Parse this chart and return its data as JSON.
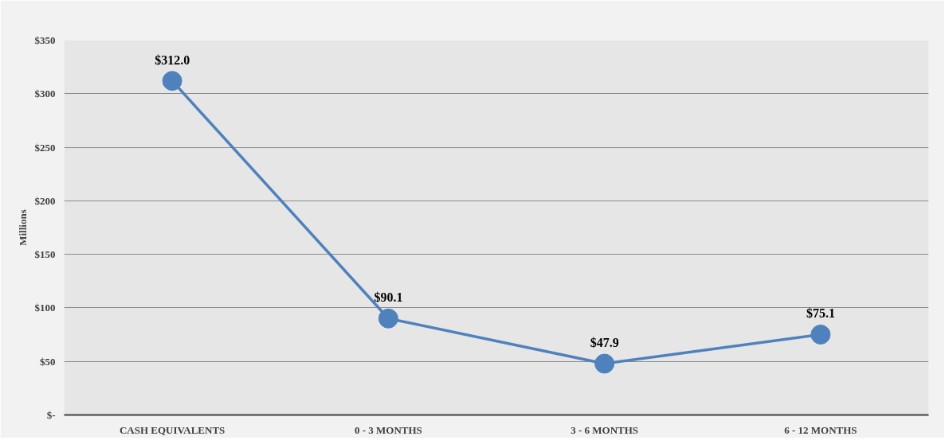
{
  "chart_data": {
    "type": "line",
    "ylabel": "Millions",
    "categories": [
      "CASH EQUIVALENTS",
      "0 - 3 MONTHS",
      "3 - 6 MONTHS",
      "6 - 12 MONTHS"
    ],
    "series": [
      {
        "color": "#4f81bd",
        "values": [
          312.0,
          90.1,
          47.9,
          75.1
        ],
        "value_labels": [
          "$312.0",
          "$90.1",
          "$47.9",
          "$75.1"
        ]
      }
    ],
    "ylim": [
      0,
      350
    ],
    "yticks": [
      {
        "value": 0,
        "label": "$-"
      },
      {
        "value": 50,
        "label": "$50"
      },
      {
        "value": 100,
        "label": "$100"
      },
      {
        "value": 150,
        "label": "$150"
      },
      {
        "value": 200,
        "label": "$200"
      },
      {
        "value": 250,
        "label": "$250"
      },
      {
        "value": 300,
        "label": "$300"
      },
      {
        "value": 350,
        "label": "$350"
      }
    ],
    "grid": "y",
    "marker": "circle",
    "line_style": "solid"
  }
}
